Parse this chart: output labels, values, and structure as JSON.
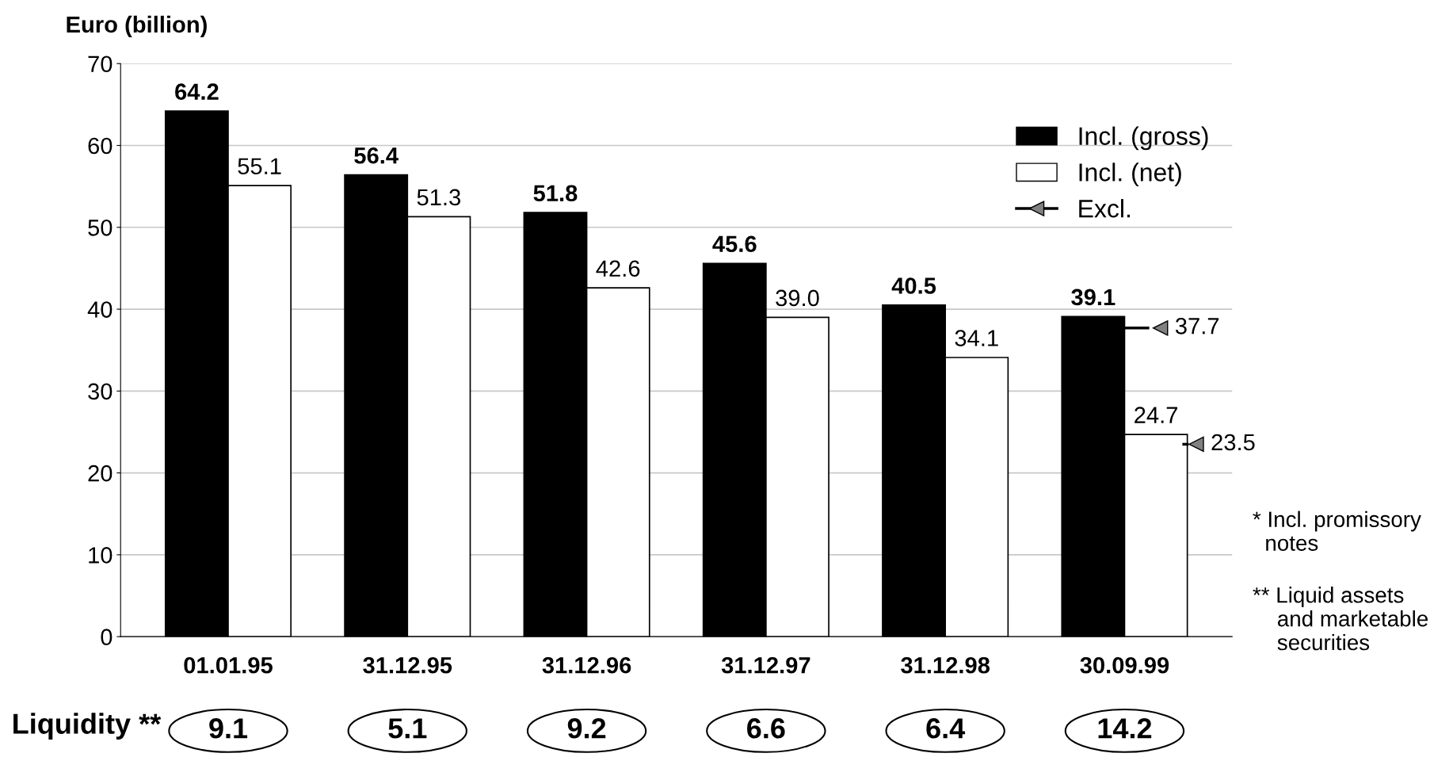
{
  "chart_data": {
    "type": "bar",
    "ylabel": "Euro (billion)",
    "categories": [
      "01.01.95",
      "31.12.95",
      "31.12.96",
      "31.12.97",
      "31.12.98",
      "30.09.99"
    ],
    "series": [
      {
        "name": "Incl. (gross)",
        "color": "#000000",
        "values": [
          64.2,
          56.4,
          51.8,
          45.6,
          40.5,
          39.1
        ],
        "value_labels": [
          "64.2",
          "56.4",
          "51.8",
          "45.6",
          "40.5",
          "39.1"
        ]
      },
      {
        "name": "Incl. (net)",
        "color": "#ffffff",
        "values": [
          55.1,
          51.3,
          42.6,
          39.0,
          34.1,
          24.7
        ],
        "value_labels": [
          "55.1",
          "51.3",
          "42.6",
          "39.0",
          "34.1",
          "24.7"
        ]
      },
      {
        "name": "Excl.",
        "type": "scatter",
        "marker": "triangle",
        "color": "#808080",
        "x": [
          "30.09.99",
          "30.09.99"
        ],
        "values": [
          37.7,
          23.5
        ],
        "value_labels": [
          "37.7",
          "23.5"
        ]
      }
    ],
    "ylim": [
      0,
      70
    ],
    "yticks": [
      0,
      10,
      20,
      30,
      40,
      50,
      60,
      70
    ],
    "grid": "y",
    "legend": "top right",
    "annotations": [
      "Liquidity **",
      "9.1",
      "5.1",
      "9.2",
      "6.6",
      "6.4",
      "14.2",
      "* Incl. promissory\n  notes",
      "** Liquid assets\n    and marketable\n    securities"
    ]
  }
}
